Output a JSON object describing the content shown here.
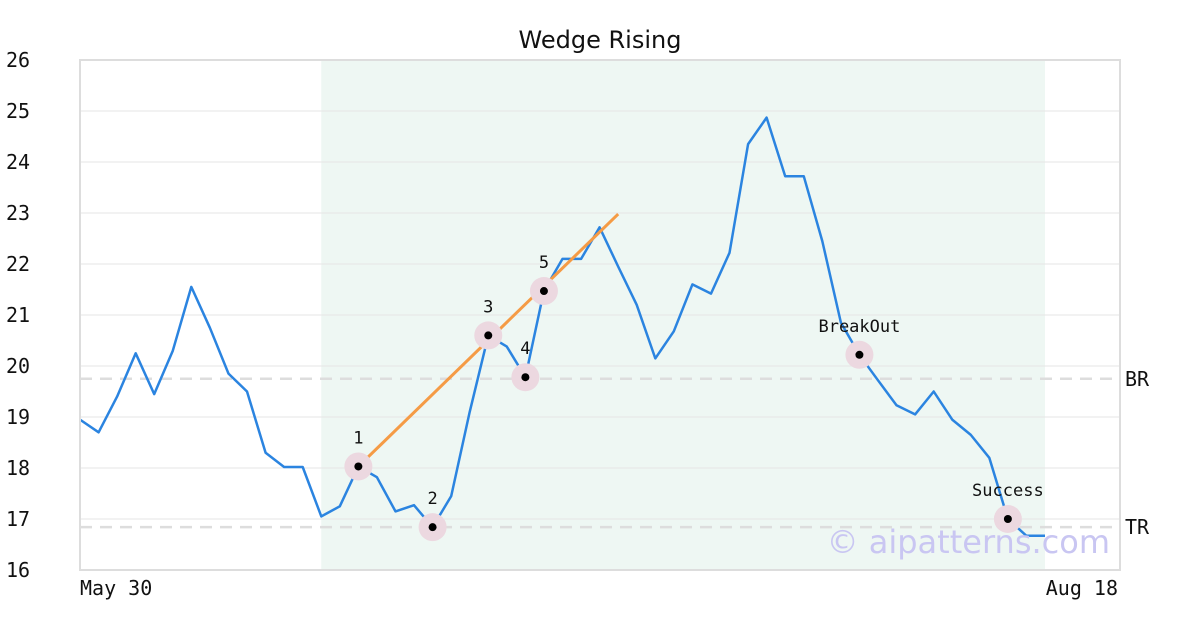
{
  "chart_data": {
    "type": "line",
    "title": "Wedge Rising",
    "ylim": [
      16,
      26
    ],
    "yticks": [
      16,
      17,
      18,
      19,
      20,
      21,
      22,
      23,
      24,
      25,
      26
    ],
    "xlabels": {
      "start": "May 30",
      "end": "Aug 18"
    },
    "grid": true,
    "colors": {
      "line": "#2b84e0",
      "wedge": "#f59b45",
      "band": "#eef7f3",
      "level": "#dddddd",
      "marker_halo": "#ecd8e0"
    },
    "series": [
      {
        "values": [
          18.95,
          18.7,
          19.4,
          20.25,
          19.45,
          20.3,
          21.55,
          20.75,
          19.85,
          19.5,
          18.3,
          18.02,
          18.02,
          17.05,
          17.25,
          18.03,
          17.82,
          17.15,
          17.27,
          16.84,
          17.45,
          19.1,
          20.6,
          20.38,
          19.78,
          21.47,
          22.1,
          22.1,
          22.72,
          21.95,
          21.2,
          20.15,
          20.68,
          21.6,
          21.42,
          22.22,
          24.35,
          24.87,
          23.72,
          23.72,
          22.45,
          20.85,
          20.22,
          19.72,
          19.23,
          19.05,
          19.5,
          18.95,
          18.65,
          18.2,
          17.0,
          16.67,
          16.67
        ]
      }
    ],
    "highlight_x_range": [
      13,
      52
    ],
    "wedge_line": {
      "x": [
        15,
        29
      ],
      "y": [
        18.03,
        22.98
      ]
    },
    "levels": [
      {
        "label": "BR",
        "y": 19.75
      },
      {
        "label": "TR",
        "y": 16.84
      }
    ],
    "points": [
      {
        "label": "1",
        "x": 15,
        "y": 18.03
      },
      {
        "label": "2",
        "x": 19,
        "y": 16.84
      },
      {
        "label": "3",
        "x": 22,
        "y": 20.6
      },
      {
        "label": "4",
        "x": 24,
        "y": 19.78
      },
      {
        "label": "5",
        "x": 25,
        "y": 21.47
      },
      {
        "label": "BreakOut",
        "x": 42,
        "y": 20.22
      },
      {
        "label": "Success",
        "x": 50,
        "y": 17.0
      }
    ],
    "watermark": "© aipatterns.com"
  }
}
